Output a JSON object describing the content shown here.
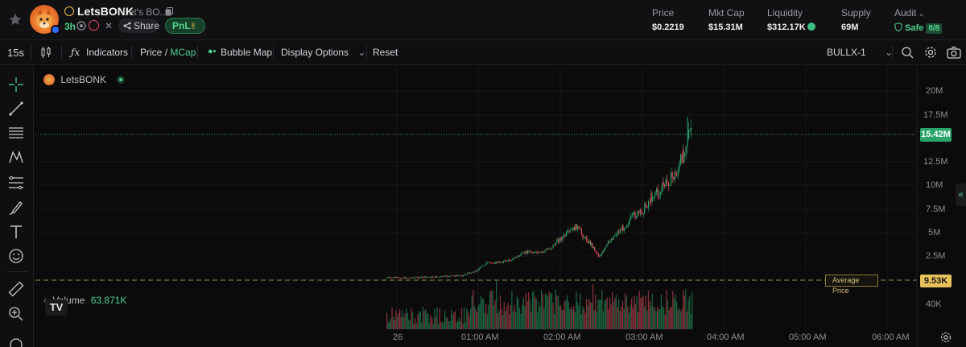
{
  "token": {
    "name": "LetsBONK",
    "description": "Let's BO...",
    "age": "3h",
    "share_label": "Share",
    "pnl_label": "PnL"
  },
  "stats": {
    "price": {
      "label": "Price",
      "value": "$0.2219"
    },
    "mktcap": {
      "label": "Mkt Cap",
      "value": "$15.31M"
    },
    "liquidity": {
      "label": "Liquidity",
      "value": "$312.17K"
    },
    "supply": {
      "label": "Supply",
      "value": "69M"
    },
    "audit": {
      "label": "Audit",
      "value": "Safe",
      "badge": "8/8"
    }
  },
  "toolbar": {
    "interval": "15s",
    "indicators": "Indicators",
    "price_label": "Price",
    "price_sep": "/",
    "mcap_label": "MCap",
    "bubble_map": "Bubble Map",
    "display_options": "Display Options",
    "reset": "Reset",
    "source": "BULLX-1"
  },
  "chart": {
    "legend_symbol": "LetsBONK",
    "volume_label": "Volume",
    "volume_value": "63.871K",
    "current_tag": "15.42M",
    "avg_tag": "9.53K",
    "avg_label": "Average Price",
    "y_ticks": [
      "20M",
      "17.5M",
      "12.5M",
      "10M",
      "7.5M",
      "5M",
      "2.5M",
      "40K"
    ],
    "x_ticks": [
      "26",
      "01:00 AM",
      "02:00 AM",
      "03:00 AM",
      "04:00 AM",
      "05:00 AM",
      "06:00 AM"
    ]
  },
  "colors": {
    "up": "#2aa56a",
    "down": "#e0505c",
    "accent": "#4fd18b",
    "avg": "#e8c15a"
  },
  "chart_data": {
    "type": "candlestick",
    "series": [
      {
        "name": "LetsBONK",
        "values": []
      }
    ],
    "ylim": [
      0,
      20000000
    ],
    "current_value": 15420000,
    "average_value": 9530
  }
}
